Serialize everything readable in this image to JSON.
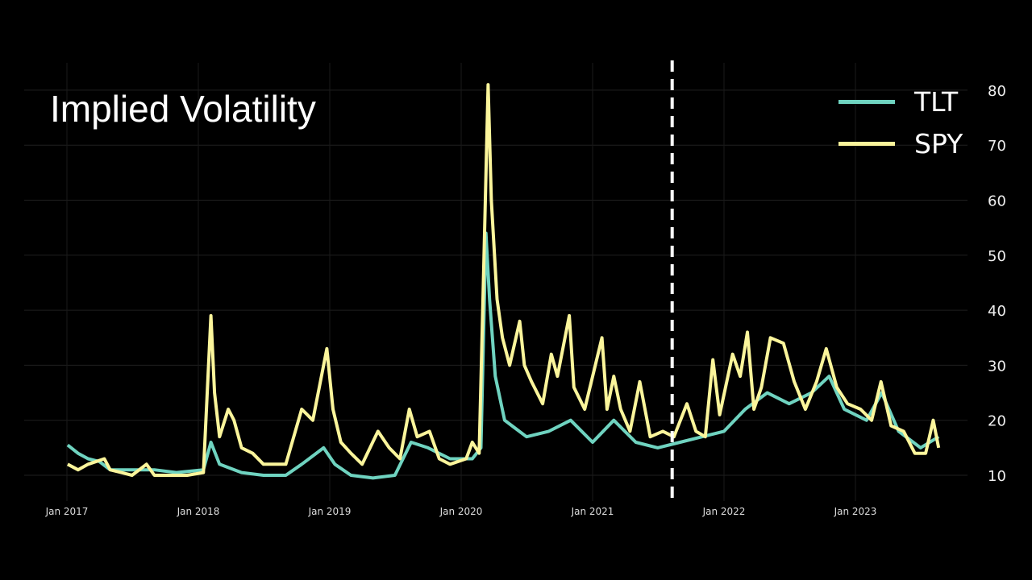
{
  "chart_data": {
    "type": "line",
    "title": "Implied Volatility",
    "xlabel": "",
    "ylabel": "",
    "ylim": [
      5,
      85
    ],
    "xlim": [
      "2016-10-15",
      "2023-12-31"
    ],
    "grid": true,
    "legend_position": "top-right",
    "y_axis_side": "right",
    "x_ticks": [
      "Jan 2017",
      "Jan 2018",
      "Jan 2019",
      "Jan 2020",
      "Jan 2021",
      "Jan 2022",
      "Jan 2023"
    ],
    "x_tick_dates": [
      "2017-01-01",
      "2018-01-01",
      "2019-01-01",
      "2020-01-01",
      "2021-01-01",
      "2022-01-01",
      "2023-01-01"
    ],
    "y_ticks": [
      10,
      20,
      30,
      40,
      50,
      60,
      70,
      80
    ],
    "vertical_marker": {
      "date": "2021-08-10",
      "style": "dashed",
      "color": "#ffffff"
    },
    "series": [
      {
        "name": "TLT",
        "color": "#6fd3c0",
        "points": [
          [
            "2017-01-03",
            15.5
          ],
          [
            "2017-02-01",
            14
          ],
          [
            "2017-03-01",
            13
          ],
          [
            "2017-04-01",
            12.5
          ],
          [
            "2017-05-01",
            11
          ],
          [
            "2017-07-01",
            11
          ],
          [
            "2017-09-01",
            11
          ],
          [
            "2017-11-01",
            10.5
          ],
          [
            "2018-01-15",
            11
          ],
          [
            "2018-02-05",
            16
          ],
          [
            "2018-03-01",
            12
          ],
          [
            "2018-05-01",
            10.5
          ],
          [
            "2018-07-01",
            10
          ],
          [
            "2018-09-01",
            10
          ],
          [
            "2018-10-15",
            12
          ],
          [
            "2018-12-15",
            15
          ],
          [
            "2019-01-15",
            12
          ],
          [
            "2019-03-01",
            10
          ],
          [
            "2019-05-01",
            9.5
          ],
          [
            "2019-07-01",
            10
          ],
          [
            "2019-08-15",
            16
          ],
          [
            "2019-10-01",
            15
          ],
          [
            "2019-12-01",
            13
          ],
          [
            "2020-02-01",
            13
          ],
          [
            "2020-02-25",
            15
          ],
          [
            "2020-03-10",
            54
          ],
          [
            "2020-03-20",
            42
          ],
          [
            "2020-04-05",
            28
          ],
          [
            "2020-05-01",
            20
          ],
          [
            "2020-07-01",
            17
          ],
          [
            "2020-09-01",
            18
          ],
          [
            "2020-11-01",
            20
          ],
          [
            "2021-01-01",
            16
          ],
          [
            "2021-03-01",
            20
          ],
          [
            "2021-05-01",
            16
          ],
          [
            "2021-07-01",
            15
          ],
          [
            "2021-09-01",
            16
          ],
          [
            "2021-11-01",
            17
          ],
          [
            "2022-01-01",
            18
          ],
          [
            "2022-03-01",
            22
          ],
          [
            "2022-05-01",
            25
          ],
          [
            "2022-07-01",
            23
          ],
          [
            "2022-09-01",
            25
          ],
          [
            "2022-10-20",
            28
          ],
          [
            "2022-12-01",
            22
          ],
          [
            "2023-02-01",
            20
          ],
          [
            "2023-03-15",
            25
          ],
          [
            "2023-05-01",
            18
          ],
          [
            "2023-07-01",
            15
          ],
          [
            "2023-08-20",
            17
          ]
        ]
      },
      {
        "name": "SPY",
        "color": "#fbf59b",
        "points": [
          [
            "2017-01-03",
            12
          ],
          [
            "2017-02-01",
            11
          ],
          [
            "2017-03-01",
            12
          ],
          [
            "2017-04-15",
            13
          ],
          [
            "2017-05-01",
            11
          ],
          [
            "2017-06-01",
            10.5
          ],
          [
            "2017-07-01",
            10
          ],
          [
            "2017-08-10",
            12
          ],
          [
            "2017-09-01",
            10
          ],
          [
            "2017-10-01",
            10
          ],
          [
            "2017-11-01",
            10
          ],
          [
            "2017-12-01",
            10
          ],
          [
            "2018-01-15",
            10.5
          ],
          [
            "2018-02-05",
            39
          ],
          [
            "2018-02-15",
            25
          ],
          [
            "2018-03-01",
            17
          ],
          [
            "2018-03-25",
            22
          ],
          [
            "2018-04-10",
            20
          ],
          [
            "2018-05-01",
            15
          ],
          [
            "2018-06-01",
            14
          ],
          [
            "2018-07-01",
            12
          ],
          [
            "2018-08-01",
            12
          ],
          [
            "2018-09-01",
            12
          ],
          [
            "2018-10-15",
            22
          ],
          [
            "2018-11-15",
            20
          ],
          [
            "2018-12-24",
            33
          ],
          [
            "2019-01-10",
            22
          ],
          [
            "2019-02-01",
            16
          ],
          [
            "2019-03-01",
            14
          ],
          [
            "2019-04-01",
            12
          ],
          [
            "2019-05-15",
            18
          ],
          [
            "2019-06-15",
            15
          ],
          [
            "2019-07-15",
            13
          ],
          [
            "2019-08-10",
            22
          ],
          [
            "2019-09-01",
            17
          ],
          [
            "2019-10-05",
            18
          ],
          [
            "2019-11-01",
            13
          ],
          [
            "2019-12-01",
            12
          ],
          [
            "2020-01-15",
            13
          ],
          [
            "2020-02-01",
            16
          ],
          [
            "2020-02-20",
            14
          ],
          [
            "2020-03-01",
            40
          ],
          [
            "2020-03-16",
            81
          ],
          [
            "2020-03-25",
            60
          ],
          [
            "2020-04-10",
            42
          ],
          [
            "2020-04-25",
            35
          ],
          [
            "2020-05-15",
            30
          ],
          [
            "2020-06-12",
            38
          ],
          [
            "2020-06-25",
            30
          ],
          [
            "2020-07-15",
            27
          ],
          [
            "2020-08-15",
            23
          ],
          [
            "2020-09-08",
            32
          ],
          [
            "2020-09-25",
            28
          ],
          [
            "2020-10-28",
            39
          ],
          [
            "2020-11-10",
            26
          ],
          [
            "2020-12-10",
            22
          ],
          [
            "2021-01-27",
            35
          ],
          [
            "2021-02-10",
            22
          ],
          [
            "2021-03-01",
            28
          ],
          [
            "2021-03-20",
            22
          ],
          [
            "2021-04-15",
            18
          ],
          [
            "2021-05-12",
            27
          ],
          [
            "2021-06-10",
            17
          ],
          [
            "2021-07-15",
            18
          ],
          [
            "2021-08-15",
            17
          ],
          [
            "2021-09-20",
            23
          ],
          [
            "2021-10-15",
            18
          ],
          [
            "2021-11-10",
            17
          ],
          [
            "2021-12-01",
            31
          ],
          [
            "2021-12-20",
            21
          ],
          [
            "2022-01-25",
            32
          ],
          [
            "2022-02-15",
            28
          ],
          [
            "2022-03-07",
            36
          ],
          [
            "2022-03-25",
            22
          ],
          [
            "2022-04-15",
            26
          ],
          [
            "2022-05-10",
            35
          ],
          [
            "2022-06-15",
            34
          ],
          [
            "2022-07-15",
            27
          ],
          [
            "2022-08-15",
            22
          ],
          [
            "2022-09-15",
            27
          ],
          [
            "2022-10-12",
            33
          ],
          [
            "2022-11-10",
            26
          ],
          [
            "2022-12-10",
            23
          ],
          [
            "2023-01-15",
            22
          ],
          [
            "2023-02-15",
            20
          ],
          [
            "2023-03-13",
            27
          ],
          [
            "2023-04-10",
            19
          ],
          [
            "2023-05-15",
            18
          ],
          [
            "2023-06-15",
            14
          ],
          [
            "2023-07-15",
            14
          ],
          [
            "2023-08-05",
            20
          ],
          [
            "2023-08-20",
            15
          ]
        ]
      }
    ]
  }
}
